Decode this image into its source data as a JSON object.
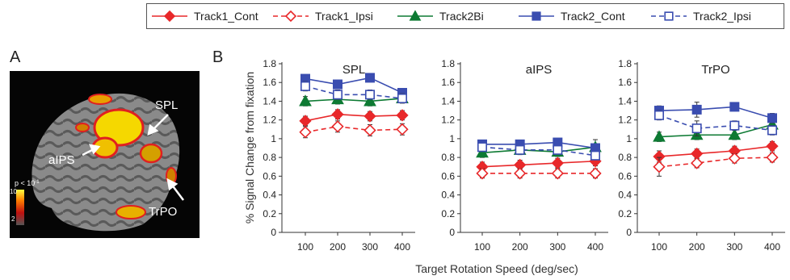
{
  "panel_labels": {
    "a": "A",
    "b": "B"
  },
  "brain_figure": {
    "labels": {
      "spl": "SPL",
      "aips": "aIPS",
      "trpo": "TrPO"
    },
    "colorbar": {
      "threshold": "p < 10",
      "threshold_exp": "-1",
      "max": "10",
      "min": "2"
    }
  },
  "chart_data": {
    "type": "line",
    "ylabel": "% Signal Change from fixation",
    "xlabel": "Target Rotation Speed (deg/sec)",
    "categories": [
      "100",
      "200",
      "300",
      "400"
    ],
    "ylim": [
      0,
      1.8
    ],
    "yticks": [
      "0",
      "0.2",
      "0.4",
      "0.6",
      "0.8",
      "1",
      "1.2",
      "1.4",
      "1.6",
      "1.8"
    ],
    "legend": [
      {
        "name": "Track1_Cont",
        "color": "#e8282a",
        "marker": "diamond",
        "filled": true,
        "dashed": false
      },
      {
        "name": "Track1_Ipsi",
        "color": "#e8282a",
        "marker": "diamond",
        "filled": false,
        "dashed": true
      },
      {
        "name": "Track2Bi",
        "color": "#0d7a33",
        "marker": "triangle",
        "filled": true,
        "dashed": false
      },
      {
        "name": "Track2_Cont",
        "color": "#3a4db0",
        "marker": "square",
        "filled": true,
        "dashed": false
      },
      {
        "name": "Track2_Ipsi",
        "color": "#3a4db0",
        "marker": "square",
        "filled": false,
        "dashed": true
      }
    ],
    "panels": [
      {
        "title": "SPL",
        "series": [
          {
            "values": [
              1.19,
              1.26,
              1.24,
              1.25
            ],
            "err": [
              0.05,
              0.05,
              0.05,
              0.05
            ]
          },
          {
            "values": [
              1.07,
              1.13,
              1.09,
              1.1
            ],
            "err": [
              0.06,
              0.06,
              0.06,
              0.06
            ]
          },
          {
            "values": [
              1.4,
              1.42,
              1.4,
              1.43
            ],
            "err": [
              0.05,
              0.05,
              0.05,
              0.05
            ]
          },
          {
            "values": [
              1.64,
              1.58,
              1.65,
              1.49
            ],
            "err": [
              0.04,
              0.04,
              0.04,
              0.04
            ]
          },
          {
            "values": [
              1.56,
              1.47,
              1.47,
              1.43
            ],
            "err": [
              0.05,
              0.05,
              0.05,
              0.05
            ]
          }
        ]
      },
      {
        "title": "aIPS",
        "series": [
          {
            "values": [
              0.7,
              0.72,
              0.74,
              0.76
            ],
            "err": [
              0.05,
              0.05,
              0.05,
              0.05
            ]
          },
          {
            "values": [
              0.63,
              0.63,
              0.63,
              0.63
            ],
            "err": [
              0.05,
              0.05,
              0.05,
              0.05
            ]
          },
          {
            "values": [
              0.85,
              0.88,
              0.86,
              0.91
            ],
            "err": [
              0.05,
              0.05,
              0.05,
              0.08
            ]
          },
          {
            "values": [
              0.94,
              0.94,
              0.96,
              0.9
            ],
            "err": [
              0.04,
              0.04,
              0.04,
              0.04
            ]
          },
          {
            "values": [
              0.91,
              0.88,
              0.88,
              0.82
            ],
            "err": [
              0.04,
              0.04,
              0.04,
              0.04
            ]
          }
        ]
      },
      {
        "title": "TrPO",
        "series": [
          {
            "values": [
              0.81,
              0.84,
              0.87,
              0.92
            ],
            "err": [
              0.06,
              0.05,
              0.05,
              0.05
            ]
          },
          {
            "values": [
              0.7,
              0.74,
              0.79,
              0.8
            ],
            "err": [
              0.1,
              0.05,
              0.05,
              0.05
            ]
          },
          {
            "values": [
              1.02,
              1.04,
              1.04,
              1.15
            ],
            "err": [
              0.05,
              0.05,
              0.05,
              0.05
            ]
          },
          {
            "values": [
              1.3,
              1.31,
              1.34,
              1.22
            ],
            "err": [
              0.05,
              0.08,
              0.04,
              0.05
            ]
          },
          {
            "values": [
              1.25,
              1.11,
              1.14,
              1.09
            ],
            "err": [
              0.05,
              0.08,
              0.05,
              0.05
            ]
          }
        ]
      }
    ]
  }
}
